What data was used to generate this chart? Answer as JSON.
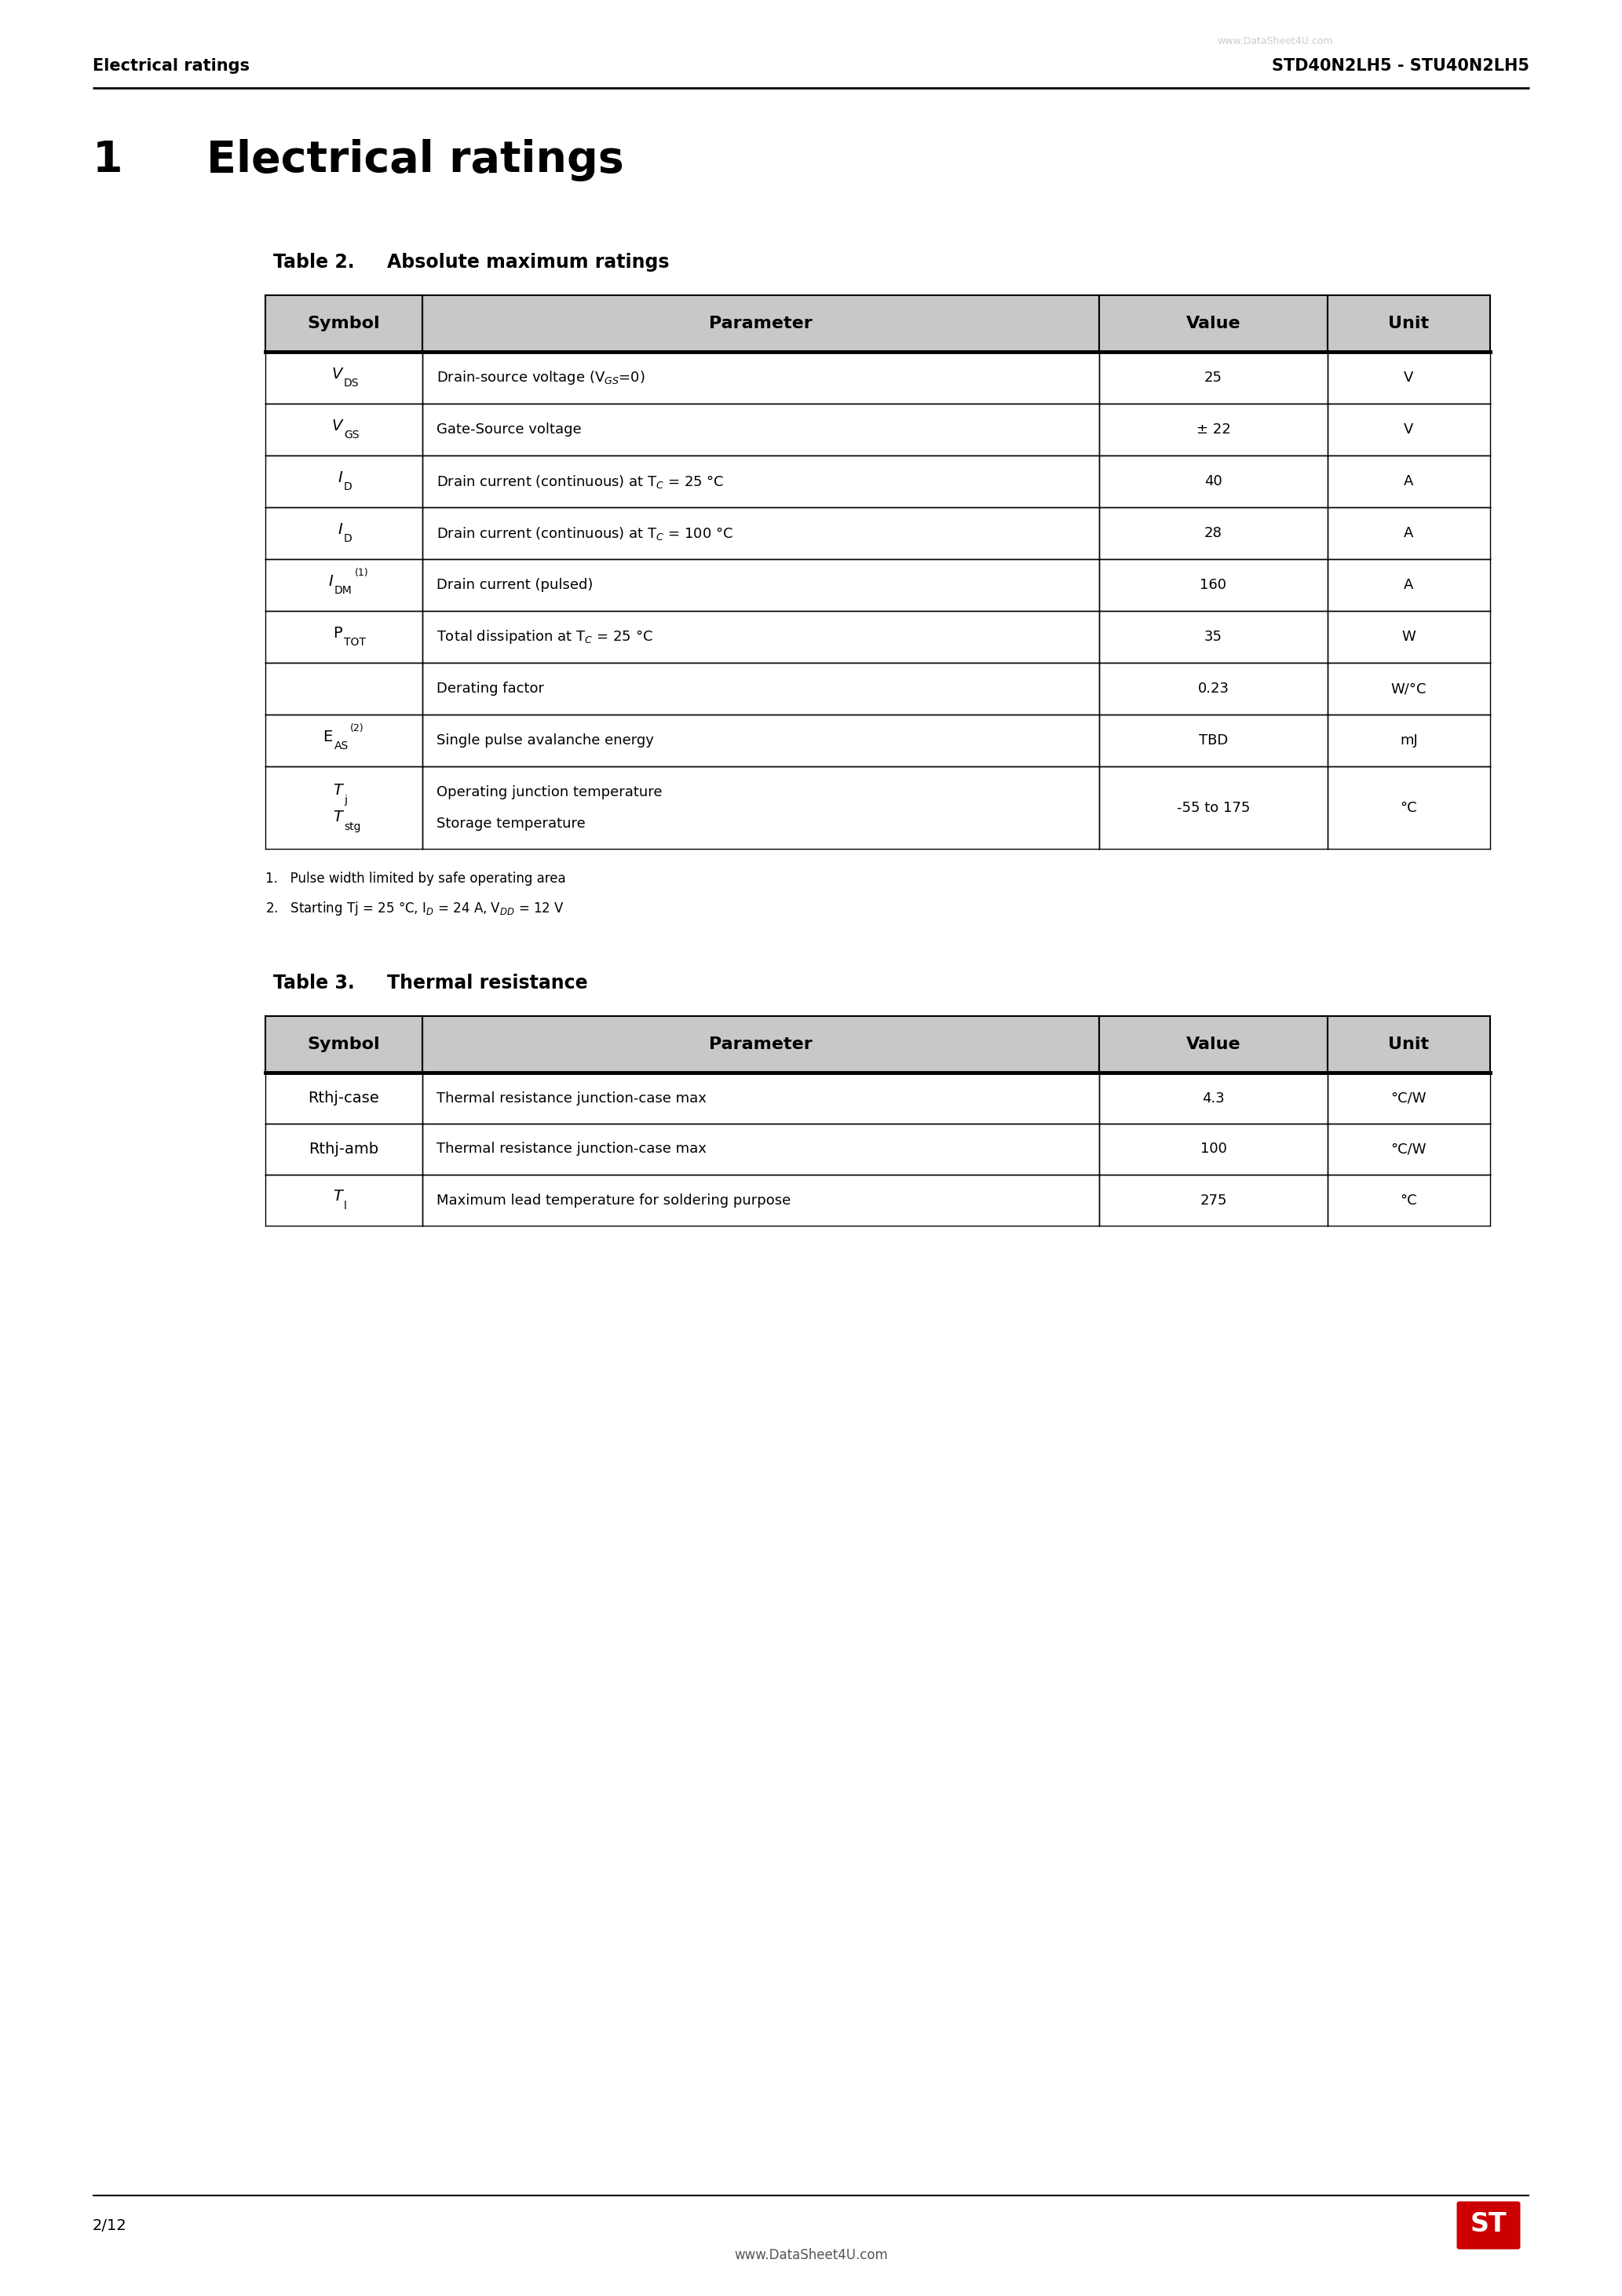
{
  "page_header_left": "Electrical ratings",
  "page_header_right": "STD40N2LH5 - STU40N2LH5",
  "watermark": "www.DataSheet4U.com",
  "section_number": "1",
  "section_title": "Electrical ratings",
  "table2_title": "Table 2.",
  "table2_subtitle": "Absolute maximum ratings",
  "table2_headers": [
    "Symbol",
    "Parameter",
    "Value",
    "Unit"
  ],
  "rows_data": [
    {
      "sym": "V_DS",
      "param": "Drain-source voltage (V$_{GS}$=0)",
      "val": "25",
      "unit": "V",
      "twoline": false
    },
    {
      "sym": "V_GS",
      "param": "Gate-Source voltage",
      "val": "± 22",
      "unit": "V",
      "twoline": false
    },
    {
      "sym": "I_D_1",
      "param": "Drain current (continuous) at T$_C$ = 25 °C",
      "val": "40",
      "unit": "A",
      "twoline": false
    },
    {
      "sym": "I_D_2",
      "param": "Drain current (continuous) at T$_C$ = 100 °C",
      "val": "28",
      "unit": "A",
      "twoline": false
    },
    {
      "sym": "I_DM",
      "param": "Drain current (pulsed)",
      "val": "160",
      "unit": "A",
      "twoline": false
    },
    {
      "sym": "P_TOT",
      "param": "Total dissipation at T$_C$ = 25 °C",
      "val": "35",
      "unit": "W",
      "twoline": false
    },
    {
      "sym": "",
      "param": "Derating factor",
      "val": "0.23",
      "unit": "W/°C",
      "twoline": false
    },
    {
      "sym": "E_AS",
      "param": "Single pulse avalanche energy",
      "val": "TBD",
      "unit": "mJ",
      "twoline": false
    },
    {
      "sym": "T_j_stg",
      "param": "Operating junction temperature\nStorage temperature",
      "val": "-55 to 175",
      "unit": "°C",
      "twoline": true
    }
  ],
  "footnote1": "1.   Pulse width limited by safe operating area",
  "footnote2": "2.   Starting Tj = 25 °C, I$_D$ = 24 A, V$_{DD}$ = 12 V",
  "table3_title": "Table 3.",
  "table3_subtitle": "Thermal resistance",
  "table3_headers": [
    "Symbol",
    "Parameter",
    "Value",
    "Unit"
  ],
  "rows3_data": [
    {
      "sym": "Rthj-case",
      "param": "Thermal resistance junction-case max",
      "val": "4.3",
      "unit": "°C/W"
    },
    {
      "sym": "Rthj-amb",
      "param": "Thermal resistance junction-case max",
      "val": "100",
      "unit": "°C/W"
    },
    {
      "sym": "T_l",
      "param": "Maximum lead temperature for soldering purpose",
      "val": "275",
      "unit": "°C"
    }
  ],
  "page_number": "2/12",
  "footer_text": "www.DataSheet4U.com",
  "bg_color": "#ffffff",
  "header_bg": "#c8c8c8"
}
